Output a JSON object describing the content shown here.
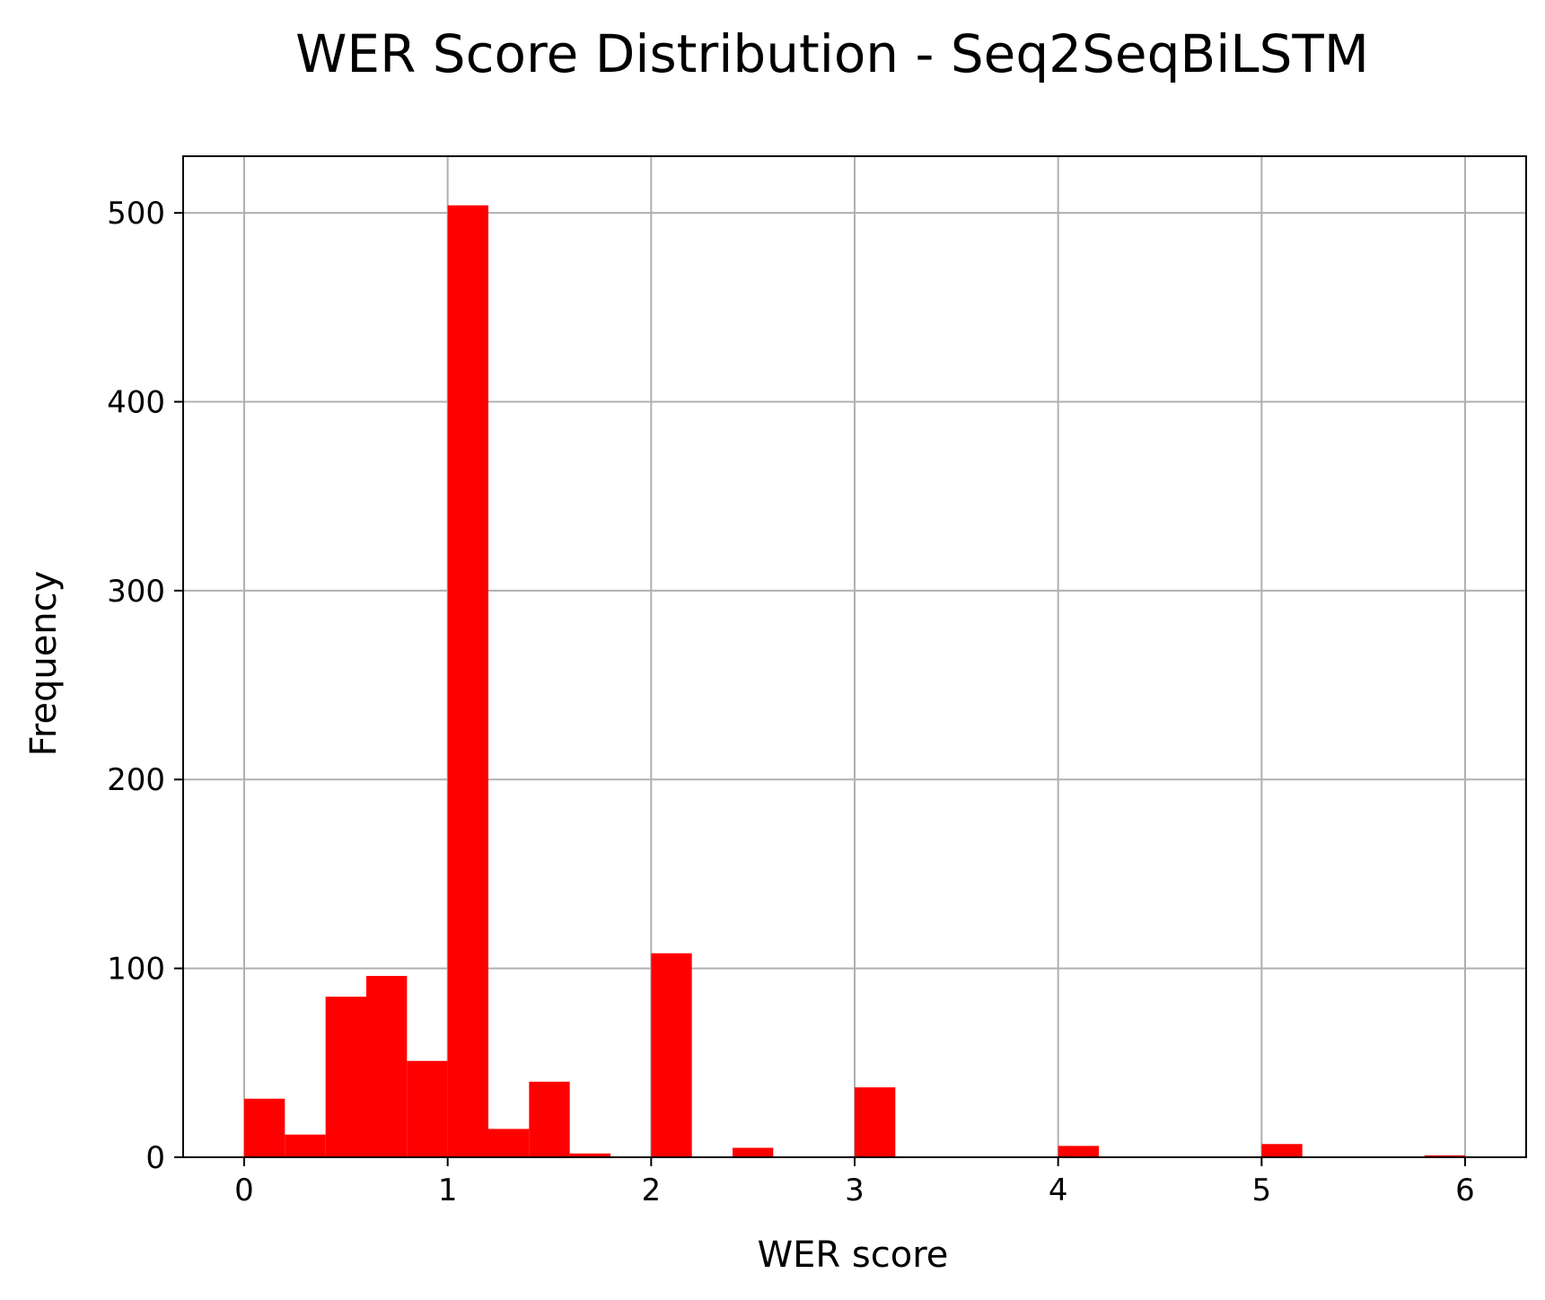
{
  "chart_data": {
    "type": "bar",
    "title": "WER Score Distribution - Seq2SeqBiLSTM",
    "xlabel": "WER score",
    "ylabel": "Frequency",
    "xlim": [
      -0.3,
      6.3
    ],
    "ylim": [
      0,
      530
    ],
    "xticks": [
      0,
      1,
      2,
      3,
      4,
      5,
      6
    ],
    "yticks": [
      0,
      100,
      200,
      300,
      400,
      500
    ],
    "xtick_labels": [
      "0",
      "1",
      "2",
      "3",
      "4",
      "5",
      "6"
    ],
    "ytick_labels": [
      "0",
      "100",
      "200",
      "300",
      "400",
      "500"
    ],
    "bin_width": 0.2,
    "bins": [
      {
        "x0": 0.0,
        "count": 31
      },
      {
        "x0": 0.2,
        "count": 12
      },
      {
        "x0": 0.4,
        "count": 85
      },
      {
        "x0": 0.6,
        "count": 96
      },
      {
        "x0": 0.8,
        "count": 51
      },
      {
        "x0": 1.0,
        "count": 504
      },
      {
        "x0": 1.2,
        "count": 15
      },
      {
        "x0": 1.4,
        "count": 40
      },
      {
        "x0": 1.6,
        "count": 2
      },
      {
        "x0": 1.8,
        "count": 0
      },
      {
        "x0": 2.0,
        "count": 108
      },
      {
        "x0": 2.2,
        "count": 0
      },
      {
        "x0": 2.4,
        "count": 5
      },
      {
        "x0": 2.6,
        "count": 0
      },
      {
        "x0": 2.8,
        "count": 0
      },
      {
        "x0": 3.0,
        "count": 37
      },
      {
        "x0": 3.2,
        "count": 0
      },
      {
        "x0": 3.4,
        "count": 0
      },
      {
        "x0": 3.6,
        "count": 0
      },
      {
        "x0": 3.8,
        "count": 0
      },
      {
        "x0": 4.0,
        "count": 6
      },
      {
        "x0": 4.2,
        "count": 0
      },
      {
        "x0": 4.4,
        "count": 0
      },
      {
        "x0": 4.6,
        "count": 0
      },
      {
        "x0": 4.8,
        "count": 0
      },
      {
        "x0": 5.0,
        "count": 7
      },
      {
        "x0": 5.2,
        "count": 0
      },
      {
        "x0": 5.4,
        "count": 0
      },
      {
        "x0": 5.6,
        "count": 0
      },
      {
        "x0": 5.8,
        "count": 1
      }
    ],
    "bar_color": "#ff0000",
    "grid": true,
    "grid_color": "#b0b0b0"
  }
}
